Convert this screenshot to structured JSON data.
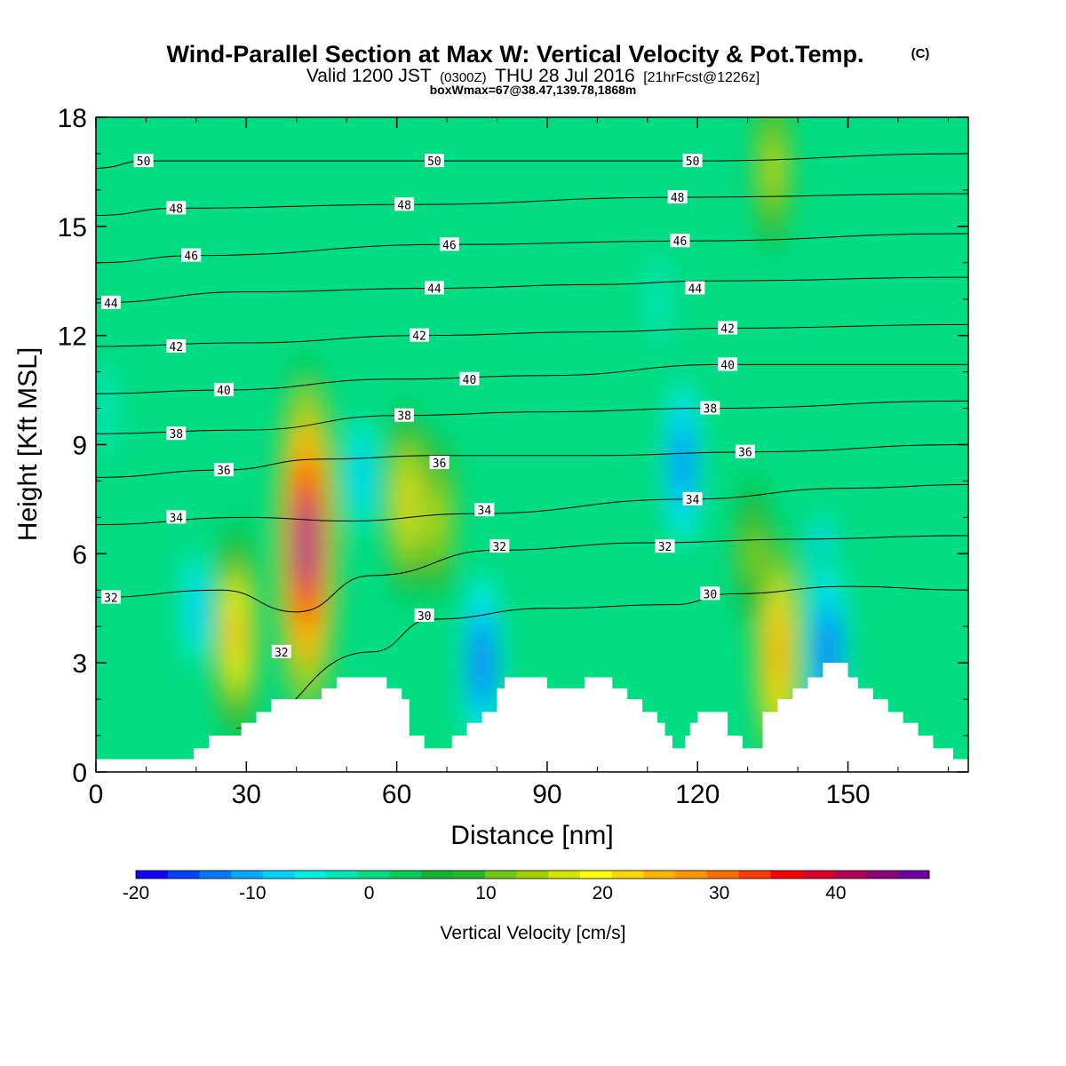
{
  "title": {
    "main": "Wind-Parallel Section at Max W: Vertical Velocity & Pot.Temp.",
    "copyright": "(C)",
    "valid_prefix": "Valid 1200 JST",
    "valid_zulu": "(0300Z)",
    "valid_date": "THU 28 Jul 2016",
    "forecast": "[21hrFcst@1226z]",
    "box": "boxWmax=67@38.47,139.78,1868m"
  },
  "chart_data": {
    "type": "heatmap",
    "xlabel": "Distance [nm]",
    "ylabel": "Height [Kft MSL]",
    "xlim": [
      0,
      174
    ],
    "ylim": [
      0,
      18
    ],
    "x_ticks": [
      "0",
      "30",
      "60",
      "90",
      "120",
      "150"
    ],
    "y_ticks": [
      "0",
      "3",
      "6",
      "9",
      "12",
      "15",
      "18"
    ],
    "colorbar": {
      "label": "Vertical Velocity [cm/s]",
      "min": -20,
      "max": 48,
      "step": 2.5,
      "tick_labels": [
        "-20",
        "-10",
        "0",
        "10",
        "20",
        "30",
        "40"
      ],
      "colors": [
        "#1400ff",
        "#0041ff",
        "#0078ff",
        "#00aaff",
        "#00d2ff",
        "#00f0e6",
        "#00e6b4",
        "#00dc82",
        "#00cd5a",
        "#14b432",
        "#28b428",
        "#6ec814",
        "#a0d200",
        "#d2e600",
        "#ffff00",
        "#ffd700",
        "#ffb400",
        "#ff9600",
        "#ff6e00",
        "#ff3c00",
        "#ff0000",
        "#dc0028",
        "#b40050",
        "#8c0078",
        "#6e00a0"
      ]
    },
    "fill_features": [
      {
        "x": 42,
        "y": 6.3,
        "peak": 40
      },
      {
        "x": 28,
        "y": 3.8,
        "peak": 22
      },
      {
        "x": 62,
        "y": 7.4,
        "peak": 18
      },
      {
        "x": 68,
        "y": 7.0,
        "peak": 14
      },
      {
        "x": 136,
        "y": 3.3,
        "peak": 24
      },
      {
        "x": 131,
        "y": 6.0,
        "peak": 12
      },
      {
        "x": 135,
        "y": 16.6,
        "peak": 14
      },
      {
        "x": 117,
        "y": 8.5,
        "peak": -16
      },
      {
        "x": 77,
        "y": 3.0,
        "peak": -18
      },
      {
        "x": 53,
        "y": 8.2,
        "peak": -10
      },
      {
        "x": 145,
        "y": 5.2,
        "peak": -14
      },
      {
        "x": 146,
        "y": 3.3,
        "peak": -18
      },
      {
        "x": 20,
        "y": 4.5,
        "peak": -10
      },
      {
        "x": 112,
        "y": 13.0,
        "peak": -5
      },
      {
        "x": 2,
        "y": 10.0,
        "peak": -5
      }
    ],
    "theta_contours": [
      {
        "value": 30,
        "heights": [
          [
            28,
            1.2
          ],
          [
            55,
            3.3
          ],
          [
            67,
            4.2
          ],
          [
            90,
            4.5
          ],
          [
            115,
            4.6
          ],
          [
            127,
            4.9
          ],
          [
            150,
            5.1
          ],
          [
            174,
            5.0
          ]
        ]
      },
      {
        "value": 32,
        "heights": [
          [
            0,
            4.8
          ],
          [
            25,
            5.0
          ],
          [
            40,
            4.4
          ],
          [
            55,
            5.4
          ],
          [
            80,
            6.1
          ],
          [
            110,
            6.3
          ],
          [
            140,
            6.4
          ],
          [
            174,
            6.5
          ]
        ]
      },
      {
        "value": 34,
        "heights": [
          [
            0,
            6.8
          ],
          [
            30,
            7.0
          ],
          [
            50,
            6.9
          ],
          [
            75,
            7.1
          ],
          [
            118,
            7.5
          ],
          [
            150,
            7.8
          ],
          [
            174,
            7.9
          ]
        ]
      },
      {
        "value": 36,
        "heights": [
          [
            0,
            8.1
          ],
          [
            25,
            8.3
          ],
          [
            45,
            8.6
          ],
          [
            68,
            8.7
          ],
          [
            100,
            8.7
          ],
          [
            130,
            8.8
          ],
          [
            174,
            9.0
          ]
        ]
      },
      {
        "value": 38,
        "heights": [
          [
            0,
            9.3
          ],
          [
            30,
            9.4
          ],
          [
            60,
            9.8
          ],
          [
            90,
            9.9
          ],
          [
            122,
            10.0
          ],
          [
            174,
            10.2
          ]
        ]
      },
      {
        "value": 40,
        "heights": [
          [
            0,
            10.4
          ],
          [
            25,
            10.5
          ],
          [
            60,
            10.8
          ],
          [
            90,
            10.9
          ],
          [
            125,
            11.2
          ],
          [
            174,
            11.2
          ]
        ]
      },
      {
        "value": 42,
        "heights": [
          [
            0,
            11.7
          ],
          [
            30,
            11.8
          ],
          [
            65,
            12.0
          ],
          [
            100,
            12.1
          ],
          [
            126,
            12.2
          ],
          [
            174,
            12.3
          ]
        ]
      },
      {
        "value": 44,
        "heights": [
          [
            0,
            12.9
          ],
          [
            30,
            13.2
          ],
          [
            68,
            13.3
          ],
          [
            100,
            13.4
          ],
          [
            122,
            13.5
          ],
          [
            174,
            13.6
          ]
        ]
      },
      {
        "value": 46,
        "heights": [
          [
            0,
            14.0
          ],
          [
            20,
            14.2
          ],
          [
            70,
            14.5
          ],
          [
            118,
            14.6
          ],
          [
            174,
            14.8
          ]
        ]
      },
      {
        "value": 48,
        "heights": [
          [
            0,
            15.3
          ],
          [
            16,
            15.5
          ],
          [
            62,
            15.6
          ],
          [
            116,
            15.8
          ],
          [
            174,
            15.9
          ]
        ]
      },
      {
        "value": 50,
        "heights": [
          [
            0,
            16.6
          ],
          [
            10,
            16.8
          ],
          [
            68,
            16.8
          ],
          [
            119,
            16.8
          ],
          [
            174,
            17.0
          ]
        ]
      }
    ],
    "contour_labels": [
      {
        "text": "50",
        "x": 9.5,
        "y": 16.8
      },
      {
        "text": "50",
        "x": 67.5,
        "y": 16.8
      },
      {
        "text": "50",
        "x": 119,
        "y": 16.8
      },
      {
        "text": "48",
        "x": 16,
        "y": 15.5
      },
      {
        "text": "48",
        "x": 61.5,
        "y": 15.6
      },
      {
        "text": "48",
        "x": 116,
        "y": 15.8
      },
      {
        "text": "46",
        "x": 19,
        "y": 14.2
      },
      {
        "text": "46",
        "x": 70.5,
        "y": 14.5
      },
      {
        "text": "46",
        "x": 116.5,
        "y": 14.6
      },
      {
        "text": "44",
        "x": 3,
        "y": 12.9
      },
      {
        "text": "44",
        "x": 67.5,
        "y": 13.3
      },
      {
        "text": "44",
        "x": 119.5,
        "y": 13.3
      },
      {
        "text": "42",
        "x": 16,
        "y": 11.7
      },
      {
        "text": "42",
        "x": 64.5,
        "y": 12.0
      },
      {
        "text": "42",
        "x": 126,
        "y": 12.2
      },
      {
        "text": "40",
        "x": 25.5,
        "y": 10.5
      },
      {
        "text": "40",
        "x": 74.5,
        "y": 10.8
      },
      {
        "text": "40",
        "x": 126,
        "y": 11.2
      },
      {
        "text": "38",
        "x": 16,
        "y": 9.3
      },
      {
        "text": "38",
        "x": 61.5,
        "y": 9.8
      },
      {
        "text": "38",
        "x": 122.5,
        "y": 10.0
      },
      {
        "text": "36",
        "x": 25.5,
        "y": 8.3
      },
      {
        "text": "36",
        "x": 68.5,
        "y": 8.5
      },
      {
        "text": "36",
        "x": 129.5,
        "y": 8.8
      },
      {
        "text": "34",
        "x": 16,
        "y": 7.0
      },
      {
        "text": "34",
        "x": 77.5,
        "y": 7.2
      },
      {
        "text": "34",
        "x": 119,
        "y": 7.5
      },
      {
        "text": "32",
        "x": 3,
        "y": 4.8
      },
      {
        "text": "32",
        "x": 37,
        "y": 3.3
      },
      {
        "text": "32",
        "x": 80.5,
        "y": 6.2
      },
      {
        "text": "32",
        "x": 113.5,
        "y": 6.2
      },
      {
        "text": "30",
        "x": 65.5,
        "y": 4.3
      },
      {
        "text": "30",
        "x": 122.5,
        "y": 4.9
      }
    ],
    "terrain": [
      [
        0,
        0.35
      ],
      [
        19.5,
        0.35
      ],
      [
        19.5,
        0.65
      ],
      [
        22.5,
        0.65
      ],
      [
        22.5,
        1.0
      ],
      [
        29,
        1.0
      ],
      [
        29,
        1.35
      ],
      [
        32,
        1.35
      ],
      [
        32,
        1.65
      ],
      [
        35,
        1.65
      ],
      [
        35,
        2.0
      ],
      [
        45,
        2.0
      ],
      [
        45,
        2.3
      ],
      [
        48,
        2.3
      ],
      [
        48,
        2.6
      ],
      [
        58,
        2.6
      ],
      [
        58,
        2.3
      ],
      [
        61,
        2.3
      ],
      [
        61,
        2.0
      ],
      [
        62.5,
        2.0
      ],
      [
        62.5,
        1.0
      ],
      [
        65.5,
        1.0
      ],
      [
        65.5,
        0.65
      ],
      [
        71,
        0.65
      ],
      [
        71,
        1.0
      ],
      [
        74,
        1.0
      ],
      [
        74,
        1.35
      ],
      [
        77,
        1.35
      ],
      [
        77,
        1.65
      ],
      [
        80,
        1.65
      ],
      [
        80,
        2.3
      ],
      [
        81.5,
        2.3
      ],
      [
        81.5,
        2.6
      ],
      [
        90,
        2.6
      ],
      [
        90,
        2.3
      ],
      [
        97.5,
        2.3
      ],
      [
        97.5,
        2.6
      ],
      [
        103,
        2.6
      ],
      [
        103,
        2.3
      ],
      [
        106,
        2.3
      ],
      [
        106,
        2.0
      ],
      [
        109,
        2.0
      ],
      [
        109,
        1.65
      ],
      [
        112,
        1.65
      ],
      [
        112,
        1.35
      ],
      [
        113.5,
        1.35
      ],
      [
        113.5,
        1.0
      ],
      [
        115,
        1.0
      ],
      [
        115,
        0.65
      ],
      [
        117.5,
        0.65
      ],
      [
        117.5,
        1.0
      ],
      [
        118.5,
        1.0
      ],
      [
        118.5,
        1.35
      ],
      [
        120,
        1.35
      ],
      [
        120,
        1.65
      ],
      [
        126,
        1.65
      ],
      [
        126,
        1.0
      ],
      [
        129,
        1.0
      ],
      [
        129,
        0.65
      ],
      [
        133,
        0.65
      ],
      [
        133,
        1.65
      ],
      [
        136,
        1.65
      ],
      [
        136,
        2.0
      ],
      [
        139,
        2.0
      ],
      [
        139,
        2.3
      ],
      [
        142,
        2.3
      ],
      [
        142,
        2.6
      ],
      [
        145,
        2.6
      ],
      [
        145,
        3.0
      ],
      [
        150,
        3.0
      ],
      [
        150,
        2.6
      ],
      [
        152,
        2.6
      ],
      [
        152,
        2.3
      ],
      [
        155,
        2.3
      ],
      [
        155,
        2.0
      ],
      [
        158,
        2.0
      ],
      [
        158,
        1.65
      ],
      [
        161,
        1.65
      ],
      [
        161,
        1.35
      ],
      [
        164,
        1.35
      ],
      [
        164,
        1.0
      ],
      [
        167,
        1.0
      ],
      [
        167,
        0.65
      ],
      [
        171,
        0.65
      ],
      [
        171,
        0.35
      ],
      [
        174,
        0.35
      ]
    ]
  }
}
